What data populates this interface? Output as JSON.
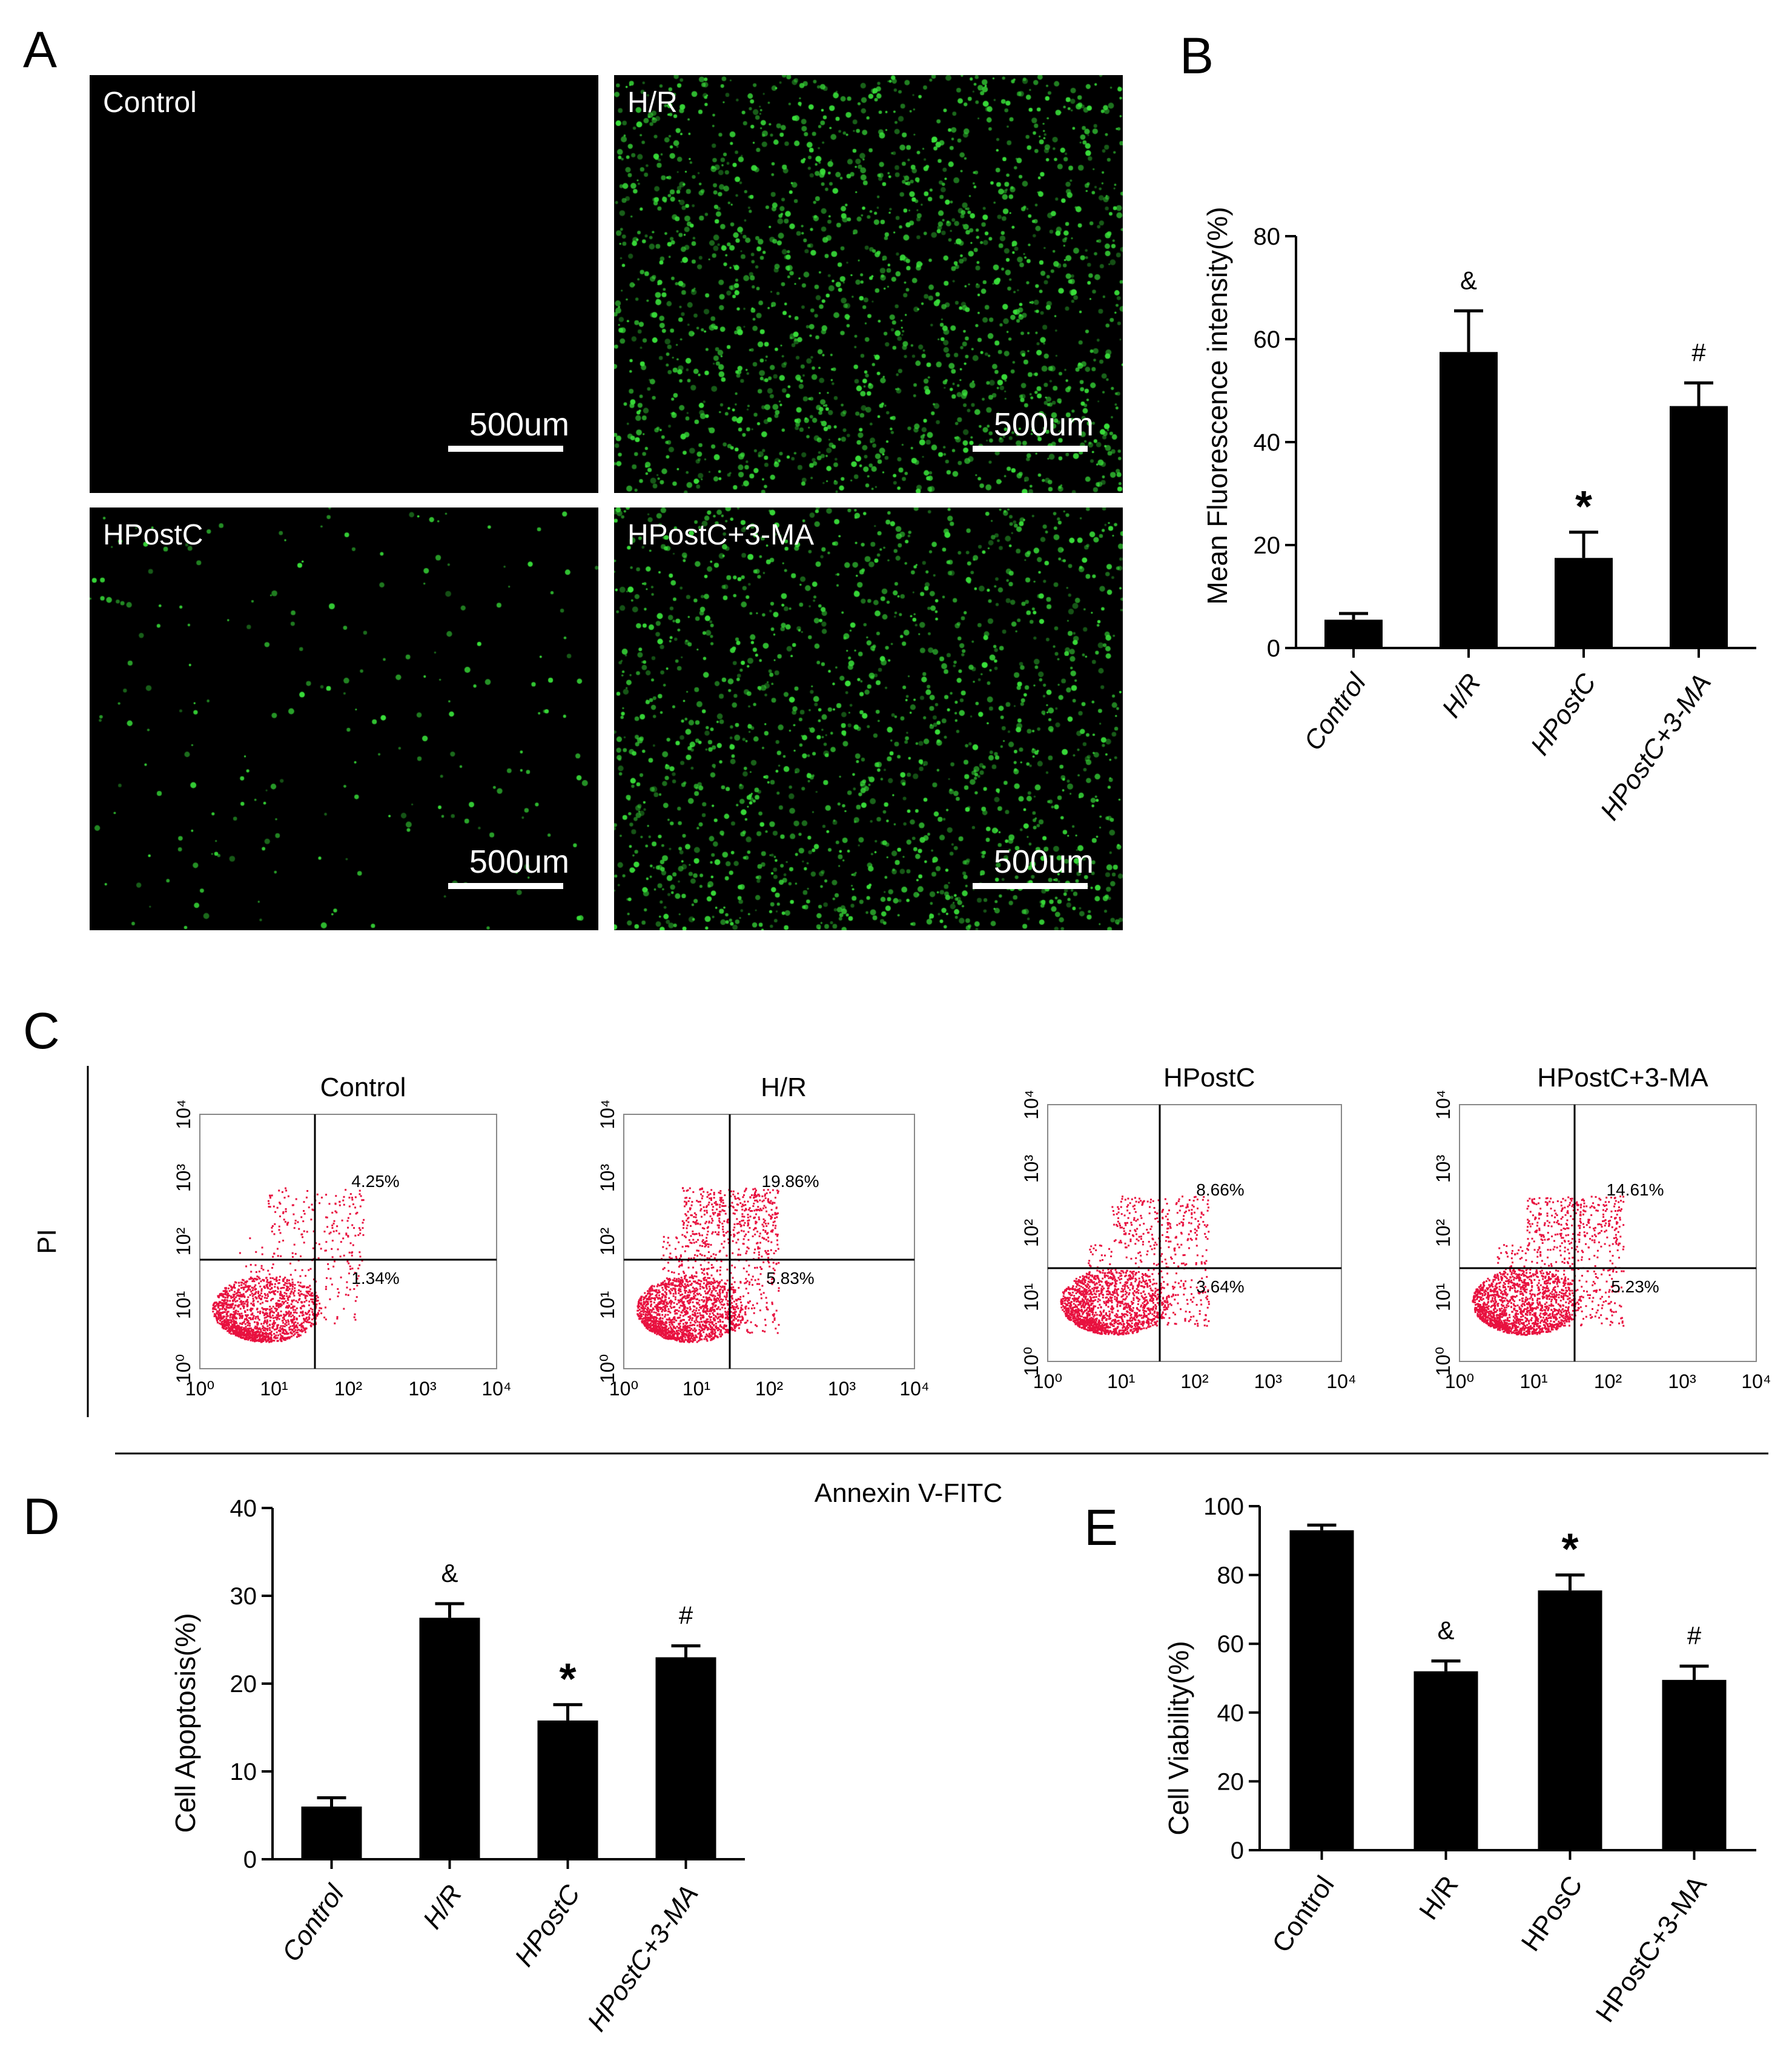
{
  "panel_labels": {
    "A": "A",
    "B": "B",
    "C": "C",
    "D": "D",
    "E": "E"
  },
  "micrographs": [
    {
      "label": "Control",
      "scale": "500um",
      "density": 0
    },
    {
      "label": "H/R",
      "scale": "500um",
      "density": 1900
    },
    {
      "label": "HPostC",
      "scale": "500um",
      "density": 220
    },
    {
      "label": "HPostC+3-MA",
      "scale": "500um",
      "density": 1650
    }
  ],
  "flow": {
    "ylabel": "PI",
    "xlabel": "Annexin V-FITC",
    "tick_labels": [
      "10⁰",
      "10¹",
      "10²",
      "10³",
      "10⁴"
    ],
    "plots": [
      {
        "title": "Control",
        "upper_right": "4.25%",
        "lower_right": "1.34%"
      },
      {
        "title": "H/R",
        "upper_right": "19.86%",
        "lower_right": "5.83%"
      },
      {
        "title": "HPostC",
        "upper_right": "8.66%",
        "lower_right": "3.64%"
      },
      {
        "title": "HPostC+3-MA",
        "upper_right": "14.61%",
        "lower_right": "5.23%"
      }
    ]
  },
  "colors": {
    "bar": "#000000",
    "dots": "#e8113f",
    "fluorescence": "#39e03a",
    "micro_bg": "#000000"
  },
  "chart_data": [
    {
      "panel": "B",
      "type": "bar",
      "ylabel": "Mean Fluorescence intensity(%)",
      "ylim": [
        0,
        80
      ],
      "yticks": [
        0,
        20,
        40,
        60,
        80
      ],
      "categories": [
        "Control",
        "H/R",
        "HPostC",
        "HPostC+3-MA"
      ],
      "values": [
        5.5,
        57.5,
        17.5,
        47
      ],
      "errors": [
        1.2,
        8,
        5,
        4.5
      ],
      "annotations": [
        "",
        "&",
        "*",
        "#"
      ]
    },
    {
      "panel": "D",
      "type": "bar",
      "ylabel": "Cell Apoptosis(%)",
      "ylim": [
        0,
        40
      ],
      "yticks": [
        0,
        10,
        20,
        30,
        40
      ],
      "categories": [
        "Control",
        "H/R",
        "HPostC",
        "HPostC+3-MA"
      ],
      "values": [
        6,
        27.5,
        15.8,
        23
      ],
      "errors": [
        1,
        1.6,
        1.8,
        1.3
      ],
      "annotations": [
        "",
        "&",
        "*",
        "#"
      ]
    },
    {
      "panel": "E",
      "type": "bar",
      "ylabel": "Cell Viability(%)",
      "ylim": [
        0,
        100
      ],
      "yticks": [
        0,
        20,
        40,
        60,
        80,
        100
      ],
      "categories": [
        "Control",
        "H/R",
        "HPosC",
        "HPostC+3-MA"
      ],
      "values": [
        93,
        52,
        75.5,
        49.5
      ],
      "errors": [
        1.5,
        3,
        4.5,
        4
      ],
      "annotations": [
        "",
        "&",
        "*",
        "#"
      ]
    }
  ]
}
